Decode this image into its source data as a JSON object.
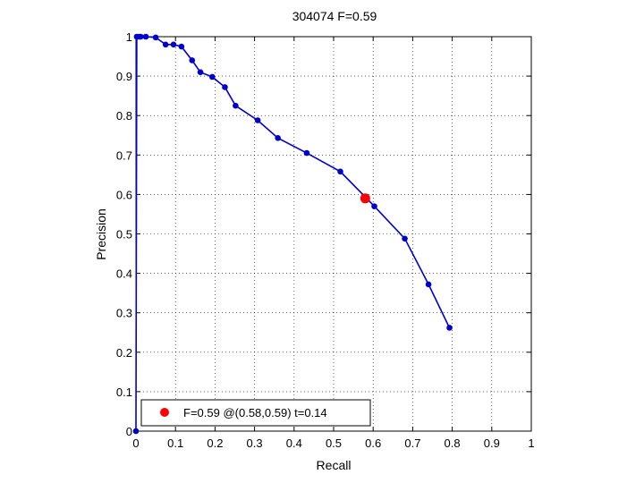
{
  "chart_data": {
    "type": "line",
    "title": "304074 F=0.59",
    "xlabel": "Recall",
    "ylabel": "Precision",
    "xlim": [
      0,
      1
    ],
    "ylim": [
      0,
      1
    ],
    "xticks": [
      0,
      0.1,
      0.2,
      0.3,
      0.4,
      0.5,
      0.6,
      0.7,
      0.8,
      0.9,
      1
    ],
    "yticks": [
      0,
      0.1,
      0.2,
      0.3,
      0.4,
      0.5,
      0.6,
      0.7,
      0.8,
      0.9,
      1
    ],
    "xtick_labels": [
      "0",
      "0.1",
      "0.2",
      "0.3",
      "0.4",
      "0.5",
      "0.6",
      "0.7",
      "0.8",
      "0.9",
      "1"
    ],
    "ytick_labels": [
      "0",
      "0.1",
      "0.2",
      "0.3",
      "0.4",
      "0.5",
      "0.6",
      "0.7",
      "0.8",
      "0.9",
      "1"
    ],
    "grid": true,
    "grid_style": "dotted",
    "series": [
      {
        "color": "#0000cc",
        "marker": "dot",
        "x": [
          0,
          0.002,
          0.008,
          0.012,
          0.025,
          0.05,
          0.075,
          0.095,
          0.115,
          0.142,
          0.163,
          0.193,
          0.225,
          0.252,
          0.308,
          0.359,
          0.432,
          0.517,
          0.603,
          0.68,
          0.74,
          0.793
        ],
        "y": [
          0,
          1.0,
          1.0,
          1.0,
          1.0,
          0.998,
          0.98,
          0.98,
          0.975,
          0.94,
          0.91,
          0.898,
          0.872,
          0.825,
          0.788,
          0.743,
          0.705,
          0.658,
          0.57,
          0.488,
          0.372,
          0.262
        ]
      }
    ],
    "highlight_point": {
      "x": 0.58,
      "y": 0.59,
      "color": "#ff0000"
    },
    "legend": {
      "placement": "bottom-left",
      "entries": [
        {
          "label": "F=0.59 @(0.58,0.59) t=0.14",
          "color": "#ff0000"
        }
      ]
    }
  }
}
